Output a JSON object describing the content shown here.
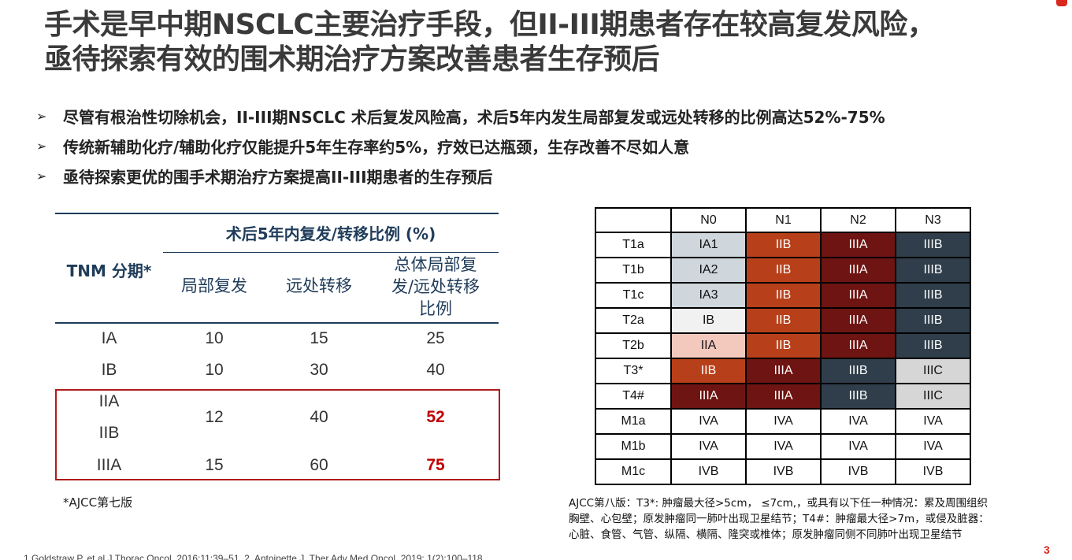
{
  "title": {
    "line1": "手术是早中期NSCLC主要治疗手段，但II-III期患者存在较高复发风险，",
    "line2": "亟待探索有效的围术期治疗方案改善患者生存预后"
  },
  "bullets": [
    "尽管有根治性切除机会，II-III期NSCLC 术后复发风险高，术后5年内发生局部复发或远处转移的比例高达52%-75%",
    "传统新辅助化疗/辅助化疗仅能提升5年生存率约5%，疗效已达瓶颈，生存改善不尽如人意",
    "亟待探索更优的围手术期治疗方案提高II-III期患者的生存预后"
  ],
  "bullet_arrow": "➢",
  "recurrence_table": {
    "stage_header": "TNM 分期*",
    "group_header": "术后5年内复发/转移比例 (%)",
    "col_local": "局部复发",
    "col_distant": "远处转移",
    "col_total_l1": "总体局部复",
    "col_total_l2": "发/远处转移",
    "col_total_l3": "比例",
    "rows": [
      {
        "stage": "IA",
        "local": "10",
        "distant": "15",
        "total": "25"
      },
      {
        "stage": "IB",
        "local": "10",
        "distant": "30",
        "total": "40"
      },
      {
        "stage": "IIA",
        "local": "",
        "distant": "",
        "total": ""
      },
      {
        "stage": "IIB",
        "local": "12",
        "distant": "40",
        "total": "52"
      },
      {
        "stage": "IIIA",
        "local": "15",
        "distant": "60",
        "total": "75"
      }
    ],
    "footnote": "*AJCC第七版",
    "highlight_color": "#c00000"
  },
  "tnm_grid": {
    "columns": [
      "N0",
      "N1",
      "N2",
      "N3"
    ],
    "rows": [
      {
        "label": "T1a",
        "cells": [
          "IA1",
          "IIB",
          "IIIA",
          "IIIB"
        ]
      },
      {
        "label": "T1b",
        "cells": [
          "IA2",
          "IIB",
          "IIIA",
          "IIIB"
        ]
      },
      {
        "label": "T1c",
        "cells": [
          "IA3",
          "IIB",
          "IIIA",
          "IIIB"
        ]
      },
      {
        "label": "T2a",
        "cells": [
          "IB",
          "IIB",
          "IIIA",
          "IIIB"
        ]
      },
      {
        "label": "T2b",
        "cells": [
          "IIA",
          "IIB",
          "IIIA",
          "IIIB"
        ]
      },
      {
        "label": "T3*",
        "cells": [
          "IIB",
          "IIIA",
          "IIIB",
          "IIIC"
        ]
      },
      {
        "label": "T4#",
        "cells": [
          "IIIA",
          "IIIA",
          "IIIB",
          "IIIC"
        ]
      },
      {
        "label": "M1a",
        "cells": [
          "IVA",
          "IVA",
          "IVA",
          "IVA"
        ]
      },
      {
        "label": "M1b",
        "cells": [
          "IVA",
          "IVA",
          "IVA",
          "IVA"
        ]
      },
      {
        "label": "M1c",
        "cells": [
          "IVB",
          "IVB",
          "IVB",
          "IVB"
        ]
      }
    ],
    "stage_colors": {
      "IA": "#cfd6dc",
      "IB": "#f1f1f1",
      "IIA": "#f3c9be",
      "IIB": "#b7401a",
      "IIIA": "#6e1412",
      "IIIB": "#2f3e4a",
      "IIIC": "#d6d6d6",
      "IV": "#ffffff"
    }
  },
  "grid_note": {
    "line1": "AJCC第八版：T3*: 肿瘤最大径>5cm， ≤7cm,，或具有以下任一种情况：累及周围组织",
    "line2": "胸壁、心包壁；原发肿瘤同一肺叶出现卫星结节；T4#：肿瘤最大径>7m，或侵及脏器：",
    "line3": "心脏、食管、气管、纵隔、横隔、隆突或椎体；原发肿瘤同侧不同肺叶出现卫星结节"
  },
  "references": "1.Goldstraw P, et al.J Thorac Oncol. 2016;11:39–51. 2. Antoinette J. Ther Adv Med Oncol. 2019; 1(2):100–118",
  "page_number": "3"
}
